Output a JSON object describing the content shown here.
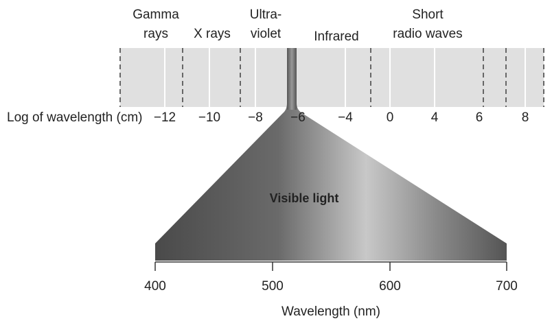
{
  "regions": [
    {
      "lines": [
        "Gamma",
        "rays"
      ]
    },
    {
      "lines": [
        "X rays"
      ]
    },
    {
      "lines": [
        "Ultra-",
        "violet"
      ]
    },
    {
      "lines": [
        "Infrared"
      ]
    },
    {
      "lines": [
        "Short",
        "radio waves"
      ]
    }
  ],
  "log_axis": {
    "label": "Log of wavelength (cm)",
    "ticks": [
      "−12",
      "−10",
      "−8",
      "−6",
      "−4",
      "0",
      "4",
      "6",
      "8"
    ]
  },
  "visible": {
    "label": "Visible light",
    "ticks": [
      400,
      500,
      600,
      700
    ],
    "axis_label": "Wavelength (nm)"
  }
}
